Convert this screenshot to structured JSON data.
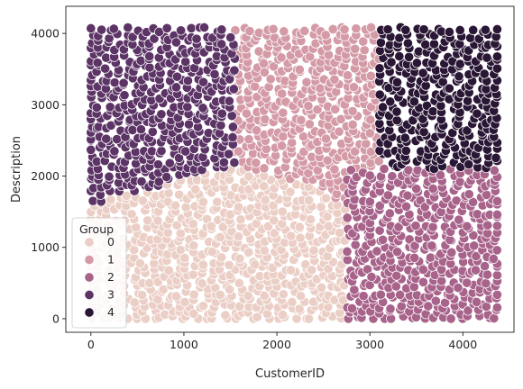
{
  "chart_data": {
    "type": "scatter",
    "title": "",
    "xlabel": "CustomerID",
    "ylabel": "Description",
    "xlim": [
      -270,
      4550
    ],
    "ylim": [
      -190,
      4380
    ],
    "xticks": [
      0,
      1000,
      2000,
      3000,
      4000
    ],
    "yticks": [
      0,
      1000,
      2000,
      3000,
      4000
    ],
    "grid": false,
    "legend": {
      "title": "Group",
      "position": "lower-left"
    },
    "marker": {
      "edge_color": "#ffffff"
    },
    "point_step": {
      "x": 95,
      "y": 88
    },
    "x_range": [
      0,
      4370
    ],
    "y_range": [
      0,
      4100
    ],
    "series": [
      {
        "name": "0",
        "color": "#ebcfc6",
        "region": "lower-left: x 0–2750, y 0 to a dome peaking ≈2100 near x≈1400"
      },
      {
        "name": "1",
        "color": "#d49ba7",
        "region": "upper-middle: x ≈1550–3100, y above the group 0 dome, up to 4100"
      },
      {
        "name": "2",
        "color": "#a8638b",
        "region": "lower-right: x ≈2750–4370, y 0 to ≈2100"
      },
      {
        "name": "3",
        "color": "#5c3466",
        "region": "upper-left: x 0–1550, y ≈1700–4100"
      },
      {
        "name": "4",
        "color": "#2a1735",
        "region": "upper-right: x ≈3100–4370, y ≈2100–4100"
      }
    ]
  }
}
